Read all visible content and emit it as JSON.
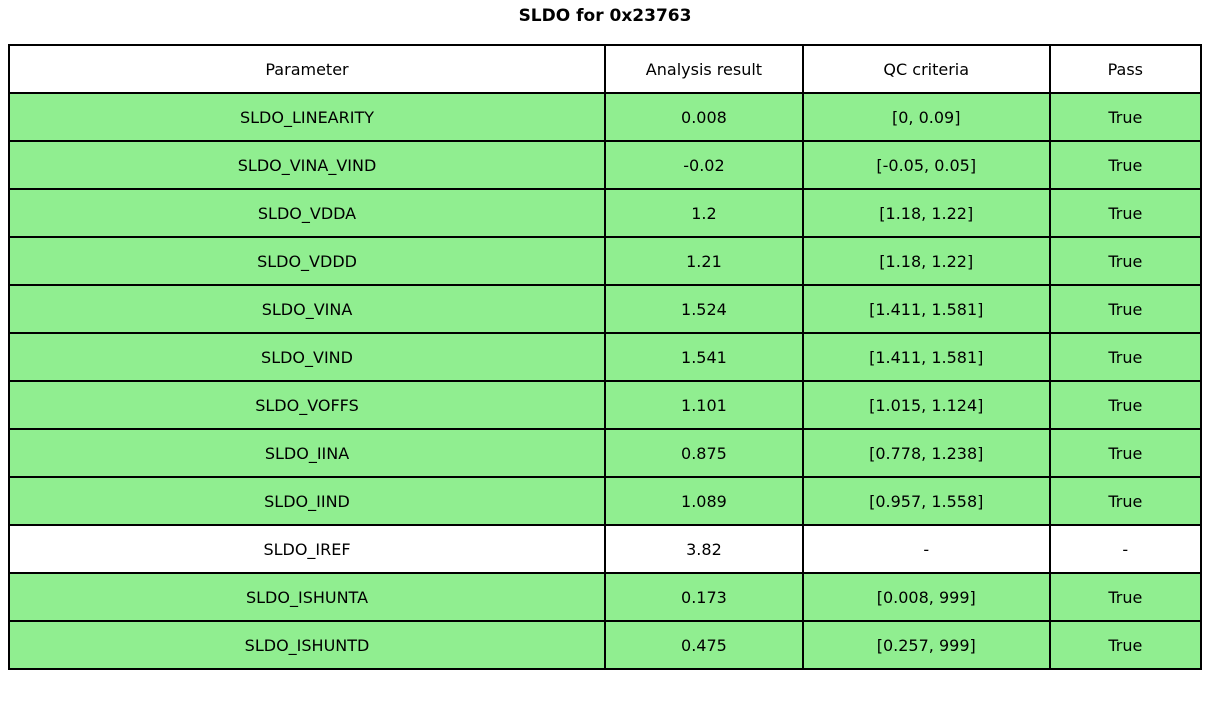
{
  "title": "SLDO for 0x23763",
  "colors": {
    "pass_green": "#90EE90",
    "neutral_white": "#FFFFFF",
    "border_black": "#000000"
  },
  "table": {
    "headers": [
      "Parameter",
      "Analysis result",
      "QC criteria",
      "Pass"
    ],
    "rows": [
      {
        "parameter": "SLDO_LINEARITY",
        "analysis_result": "0.008",
        "qc_criteria": "[0, 0.09]",
        "pass": "True",
        "highlight": "green"
      },
      {
        "parameter": "SLDO_VINA_VIND",
        "analysis_result": "-0.02",
        "qc_criteria": "[-0.05, 0.05]",
        "pass": "True",
        "highlight": "green"
      },
      {
        "parameter": "SLDO_VDDA",
        "analysis_result": "1.2",
        "qc_criteria": "[1.18, 1.22]",
        "pass": "True",
        "highlight": "green"
      },
      {
        "parameter": "SLDO_VDDD",
        "analysis_result": "1.21",
        "qc_criteria": "[1.18, 1.22]",
        "pass": "True",
        "highlight": "green"
      },
      {
        "parameter": "SLDO_VINA",
        "analysis_result": "1.524",
        "qc_criteria": "[1.411, 1.581]",
        "pass": "True",
        "highlight": "green"
      },
      {
        "parameter": "SLDO_VIND",
        "analysis_result": "1.541",
        "qc_criteria": "[1.411, 1.581]",
        "pass": "True",
        "highlight": "green"
      },
      {
        "parameter": "SLDO_VOFFS",
        "analysis_result": "1.101",
        "qc_criteria": "[1.015, 1.124]",
        "pass": "True",
        "highlight": "green"
      },
      {
        "parameter": "SLDO_IINA",
        "analysis_result": "0.875",
        "qc_criteria": "[0.778, 1.238]",
        "pass": "True",
        "highlight": "green"
      },
      {
        "parameter": "SLDO_IIND",
        "analysis_result": "1.089",
        "qc_criteria": "[0.957, 1.558]",
        "pass": "True",
        "highlight": "green"
      },
      {
        "parameter": "SLDO_IREF",
        "analysis_result": "3.82",
        "qc_criteria": "-",
        "pass": "-",
        "highlight": "white"
      },
      {
        "parameter": "SLDO_ISHUNTA",
        "analysis_result": "0.173",
        "qc_criteria": "[0.008, 999]",
        "pass": "True",
        "highlight": "green"
      },
      {
        "parameter": "SLDO_ISHUNTD",
        "analysis_result": "0.475",
        "qc_criteria": "[0.257, 999]",
        "pass": "True",
        "highlight": "green"
      }
    ]
  },
  "chart_data": {
    "type": "table",
    "title": "SLDO for 0x23763",
    "columns": [
      "Parameter",
      "Analysis result",
      "QC criteria",
      "Pass"
    ],
    "rows": [
      [
        "SLDO_LINEARITY",
        0.008,
        "[0, 0.09]",
        "True"
      ],
      [
        "SLDO_VINA_VIND",
        -0.02,
        "[-0.05, 0.05]",
        "True"
      ],
      [
        "SLDO_VDDA",
        1.2,
        "[1.18, 1.22]",
        "True"
      ],
      [
        "SLDO_VDDD",
        1.21,
        "[1.18, 1.22]",
        "True"
      ],
      [
        "SLDO_VINA",
        1.524,
        "[1.411, 1.581]",
        "True"
      ],
      [
        "SLDO_VIND",
        1.541,
        "[1.411, 1.581]",
        "True"
      ],
      [
        "SLDO_VOFFS",
        1.101,
        "[1.015, 1.124]",
        "True"
      ],
      [
        "SLDO_IINA",
        0.875,
        "[0.778, 1.238]",
        "True"
      ],
      [
        "SLDO_IIND",
        1.089,
        "[0.957, 1.558]",
        "True"
      ],
      [
        "SLDO_IREF",
        3.82,
        "-",
        "-"
      ],
      [
        "SLDO_ISHUNTA",
        0.173,
        "[0.008, 999]",
        "True"
      ],
      [
        "SLDO_ISHUNTD",
        0.475,
        "[0.257, 999]",
        "True"
      ]
    ],
    "row_highlight": [
      "green",
      "green",
      "green",
      "green",
      "green",
      "green",
      "green",
      "green",
      "green",
      "white",
      "green",
      "green"
    ],
    "layout": {
      "header_background": "#FFFFFF",
      "pass_row_background": "#90EE90",
      "border": "2px black",
      "text_align": "center"
    }
  }
}
